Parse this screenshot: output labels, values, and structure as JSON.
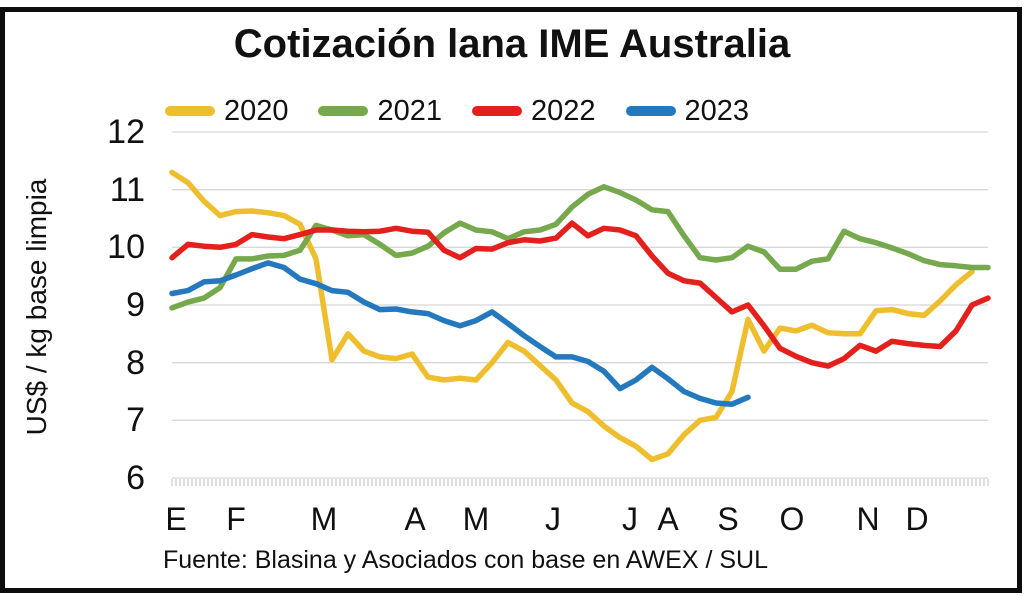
{
  "chart": {
    "title": "Cotización lana IME Australia",
    "y_axis": {
      "title": "US$ / kg base limpia",
      "min": 6,
      "max": 12,
      "ticks": [
        12,
        11,
        10,
        9,
        8,
        7,
        6
      ]
    },
    "x_axis": {
      "month_labels": [
        "E",
        "F",
        "M",
        "A",
        "M",
        "J",
        "J",
        "A",
        "S",
        "O",
        "N",
        "D"
      ]
    },
    "source_note": "Fuente: Blasina y Asociados con base en AWEX / SUL"
  },
  "chart_data": {
    "type": "line",
    "title": "Cotización lana IME Australia",
    "xlabel": "",
    "ylabel": "US$ / kg base limpia",
    "ylim": [
      6,
      12
    ],
    "grid": "horizontal",
    "legend_position": "top",
    "x_type": "weekly (week of year, Jan–Dec)",
    "month_labels": [
      "E",
      "F",
      "M",
      "A",
      "M",
      "J",
      "J",
      "A",
      "S",
      "O",
      "N",
      "D"
    ],
    "series": [
      {
        "name": "2020",
        "color": "#EFBE2F",
        "values": [
          11.3,
          11.12,
          10.8,
          10.55,
          10.62,
          10.63,
          10.6,
          10.55,
          10.4,
          9.8,
          8.05,
          8.5,
          8.2,
          8.1,
          8.07,
          8.15,
          7.75,
          7.7,
          7.73,
          7.7,
          8.0,
          8.35,
          8.2,
          7.95,
          7.7,
          7.3,
          7.15,
          6.9,
          6.7,
          6.55,
          6.32,
          6.42,
          6.75,
          7.0,
          7.05,
          7.5,
          8.75,
          8.2,
          8.6,
          8.55,
          8.65,
          8.52,
          8.5,
          8.5,
          8.9,
          8.92,
          8.85,
          8.82,
          9.07,
          9.35,
          9.58
        ]
      },
      {
        "name": "2021",
        "color": "#76A94E",
        "values": [
          8.95,
          9.05,
          9.12,
          9.3,
          9.8,
          9.8,
          9.85,
          9.86,
          9.95,
          10.38,
          10.3,
          10.2,
          10.22,
          10.05,
          9.86,
          9.9,
          10.02,
          10.25,
          10.42,
          10.3,
          10.27,
          10.15,
          10.27,
          10.3,
          10.4,
          10.7,
          10.92,
          11.05,
          10.95,
          10.82,
          10.65,
          10.62,
          10.2,
          9.82,
          9.78,
          9.82,
          10.02,
          9.92,
          9.62,
          9.62,
          9.76,
          9.8,
          10.28,
          10.15,
          10.08,
          9.99,
          9.89,
          9.77,
          9.7,
          9.68,
          9.65,
          9.65
        ]
      },
      {
        "name": "2022",
        "color": "#E3201B",
        "values": [
          9.82,
          10.05,
          10.02,
          10.0,
          10.05,
          10.22,
          10.18,
          10.15,
          10.22,
          10.3,
          10.3,
          10.28,
          10.27,
          10.28,
          10.33,
          10.28,
          10.26,
          9.95,
          9.82,
          9.98,
          9.97,
          10.08,
          10.13,
          10.11,
          10.16,
          10.42,
          10.2,
          10.33,
          10.3,
          10.2,
          9.85,
          9.55,
          9.42,
          9.38,
          9.13,
          8.88,
          9.0,
          8.64,
          8.25,
          8.11,
          8.0,
          7.94,
          8.07,
          8.3,
          8.2,
          8.37,
          8.33,
          8.3,
          8.28,
          8.55,
          9.0,
          9.12
        ]
      },
      {
        "name": "2023",
        "color": "#2478BE",
        "values": [
          9.2,
          9.25,
          9.4,
          9.42,
          9.52,
          9.63,
          9.73,
          9.65,
          9.45,
          9.37,
          9.25,
          9.22,
          9.05,
          8.92,
          8.93,
          8.88,
          8.85,
          8.73,
          8.64,
          8.73,
          8.88,
          8.68,
          8.47,
          8.28,
          8.1,
          8.1,
          8.02,
          7.85,
          7.55,
          7.7,
          7.92,
          7.72,
          7.5,
          7.38,
          7.3,
          7.28,
          7.4
        ]
      }
    ],
    "style": {
      "grid_color": "#D8D8D8",
      "tick_color": "#C9C9C9",
      "line_width": 5.5
    }
  }
}
